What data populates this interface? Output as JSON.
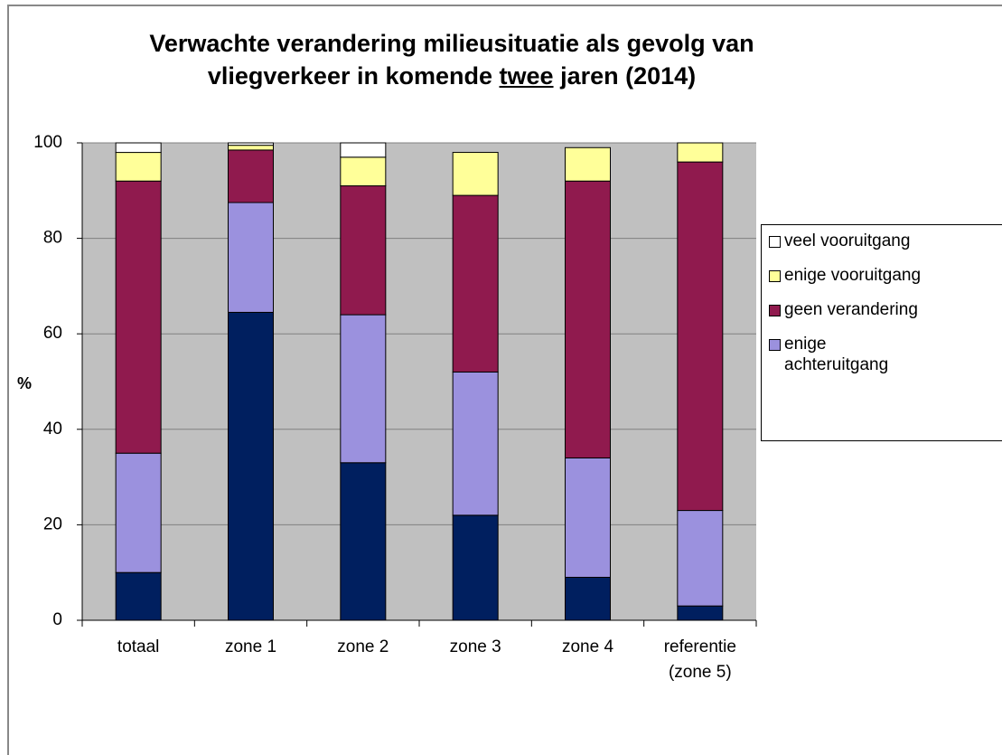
{
  "chart_data": {
    "type": "stacked-bar",
    "title": {
      "line1": "Verwachte verandering milieusituatie als gevolg van",
      "line2_start": "vliegverkeer in komende",
      "line2_underlined": "twee",
      "line2_end": "jaren (2014)"
    },
    "y_label": "%",
    "categories": [
      "totaal",
      "zone 1",
      "zone 2",
      "zone 3",
      "zone 4",
      [
        "referentie",
        "(zone 5)"
      ]
    ],
    "series": [
      {
        "color": "#001f5f",
        "values": [
          10,
          64.5,
          33,
          22,
          9,
          3
        ]
      },
      {
        "name": "enige achteruitgang",
        "color": "#9b91de",
        "values": [
          25,
          23,
          31,
          30,
          25,
          20
        ]
      },
      {
        "name": "geen verandering",
        "color": "#901a4e",
        "values": [
          57,
          11,
          27,
          37,
          58,
          73
        ]
      },
      {
        "name": "enige vooruitgang",
        "color": "#ffff99",
        "values": [
          6,
          1,
          6,
          9,
          7,
          4
        ]
      },
      {
        "name": "veel vooruitgang",
        "color": "#ffffff",
        "values": [
          2,
          0.5,
          3,
          0,
          0,
          0
        ]
      }
    ],
    "ylim": [
      0,
      100
    ],
    "yticks": [
      0,
      20,
      40,
      60,
      80,
      100
    ],
    "grid": true,
    "plot_background": "#c0c0c0"
  }
}
